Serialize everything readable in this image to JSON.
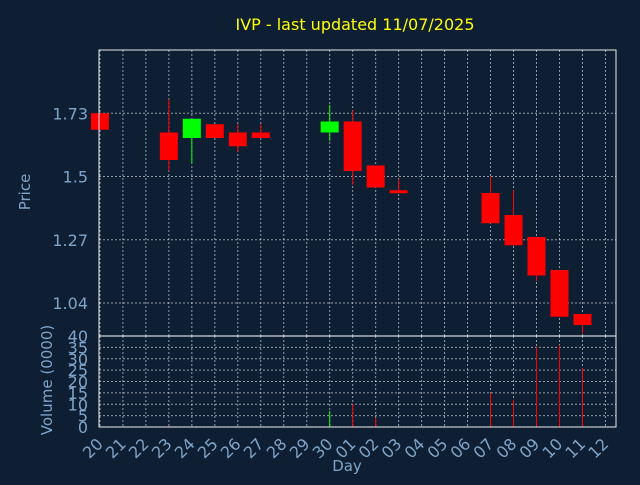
{
  "chart_data": {
    "type": "candlestick",
    "title": "IVP - last updated 11/07/2025",
    "xlabel": "Day",
    "price_axis": {
      "label": "Price",
      "ticks": [
        "1.73",
        "1.5",
        "1.27",
        "1.04"
      ],
      "tick_values": [
        1.73,
        1.5,
        1.27,
        1.04
      ],
      "ylim": [
        0.92,
        1.96
      ]
    },
    "volume_axis": {
      "label": "Volume (0000)",
      "ticks": [
        "0",
        "5",
        "10",
        "15",
        "20",
        "25",
        "30",
        "35",
        "40"
      ],
      "tick_values": [
        0,
        5,
        10,
        15,
        20,
        25,
        30,
        35,
        40
      ],
      "ylim": [
        0,
        40
      ]
    },
    "x_ticks": [
      "20",
      "21",
      "22",
      "23",
      "24",
      "25",
      "26",
      "27",
      "28",
      "29",
      "30",
      "01",
      "02",
      "03",
      "04",
      "05",
      "06",
      "07",
      "08",
      "09",
      "10",
      "11",
      "12"
    ],
    "candles": [
      {
        "day": "20",
        "open": 1.73,
        "close": 1.67,
        "high": 1.73,
        "low": 1.67,
        "color": "#ff0000"
      },
      {
        "day": "23",
        "open": 1.66,
        "close": 1.56,
        "high": 1.78,
        "low": 1.52,
        "color": "#ff0000"
      },
      {
        "day": "24",
        "open": 1.64,
        "close": 1.71,
        "high": 1.71,
        "low": 1.55,
        "color": "#00ff00"
      },
      {
        "day": "25",
        "open": 1.69,
        "close": 1.64,
        "high": 1.69,
        "low": 1.64,
        "color": "#ff0000"
      },
      {
        "day": "26",
        "open": 1.66,
        "close": 1.61,
        "high": 1.69,
        "low": 1.59,
        "color": "#ff0000"
      },
      {
        "day": "27",
        "open": 1.66,
        "close": 1.64,
        "high": 1.69,
        "low": 1.64,
        "color": "#ff0000"
      },
      {
        "day": "30",
        "open": 1.66,
        "close": 1.7,
        "high": 1.76,
        "low": 1.63,
        "color": "#00ff00"
      },
      {
        "day": "01",
        "open": 1.7,
        "close": 1.52,
        "high": 1.74,
        "low": 1.47,
        "color": "#ff0000"
      },
      {
        "day": "02",
        "open": 1.54,
        "close": 1.46,
        "high": 1.54,
        "low": 1.46,
        "color": "#ff0000"
      },
      {
        "day": "03",
        "open": 1.45,
        "close": 1.44,
        "high": 1.49,
        "low": 1.44,
        "color": "#ff0000"
      },
      {
        "day": "07",
        "open": 1.44,
        "close": 1.33,
        "high": 1.5,
        "low": 1.33,
        "color": "#ff0000"
      },
      {
        "day": "08",
        "open": 1.36,
        "close": 1.25,
        "high": 1.45,
        "low": 1.25,
        "color": "#ff0000"
      },
      {
        "day": "09",
        "open": 1.28,
        "close": 1.14,
        "high": 1.28,
        "low": 1.12,
        "color": "#ff0000"
      },
      {
        "day": "10",
        "open": 1.16,
        "close": 0.99,
        "high": 1.16,
        "low": 0.99,
        "color": "#ff0000"
      },
      {
        "day": "11",
        "open": 1.0,
        "close": 0.96,
        "high": 1.0,
        "low": 0.93,
        "color": "#ff0000"
      }
    ],
    "volume": [
      {
        "day": "23",
        "value": 0.5,
        "color": "#ff0000"
      },
      {
        "day": "30",
        "value": 7,
        "color": "#00ff00"
      },
      {
        "day": "01",
        "value": 10,
        "color": "#ff0000"
      },
      {
        "day": "02",
        "value": 4,
        "color": "#ff0000"
      },
      {
        "day": "07",
        "value": 15,
        "color": "#ff0000"
      },
      {
        "day": "08",
        "value": 12,
        "color": "#ff0000"
      },
      {
        "day": "09",
        "value": 35,
        "color": "#ff0000"
      },
      {
        "day": "10",
        "value": 36,
        "color": "#ff0000"
      },
      {
        "day": "11",
        "value": 26,
        "color": "#ff0000"
      }
    ],
    "grid": true
  }
}
